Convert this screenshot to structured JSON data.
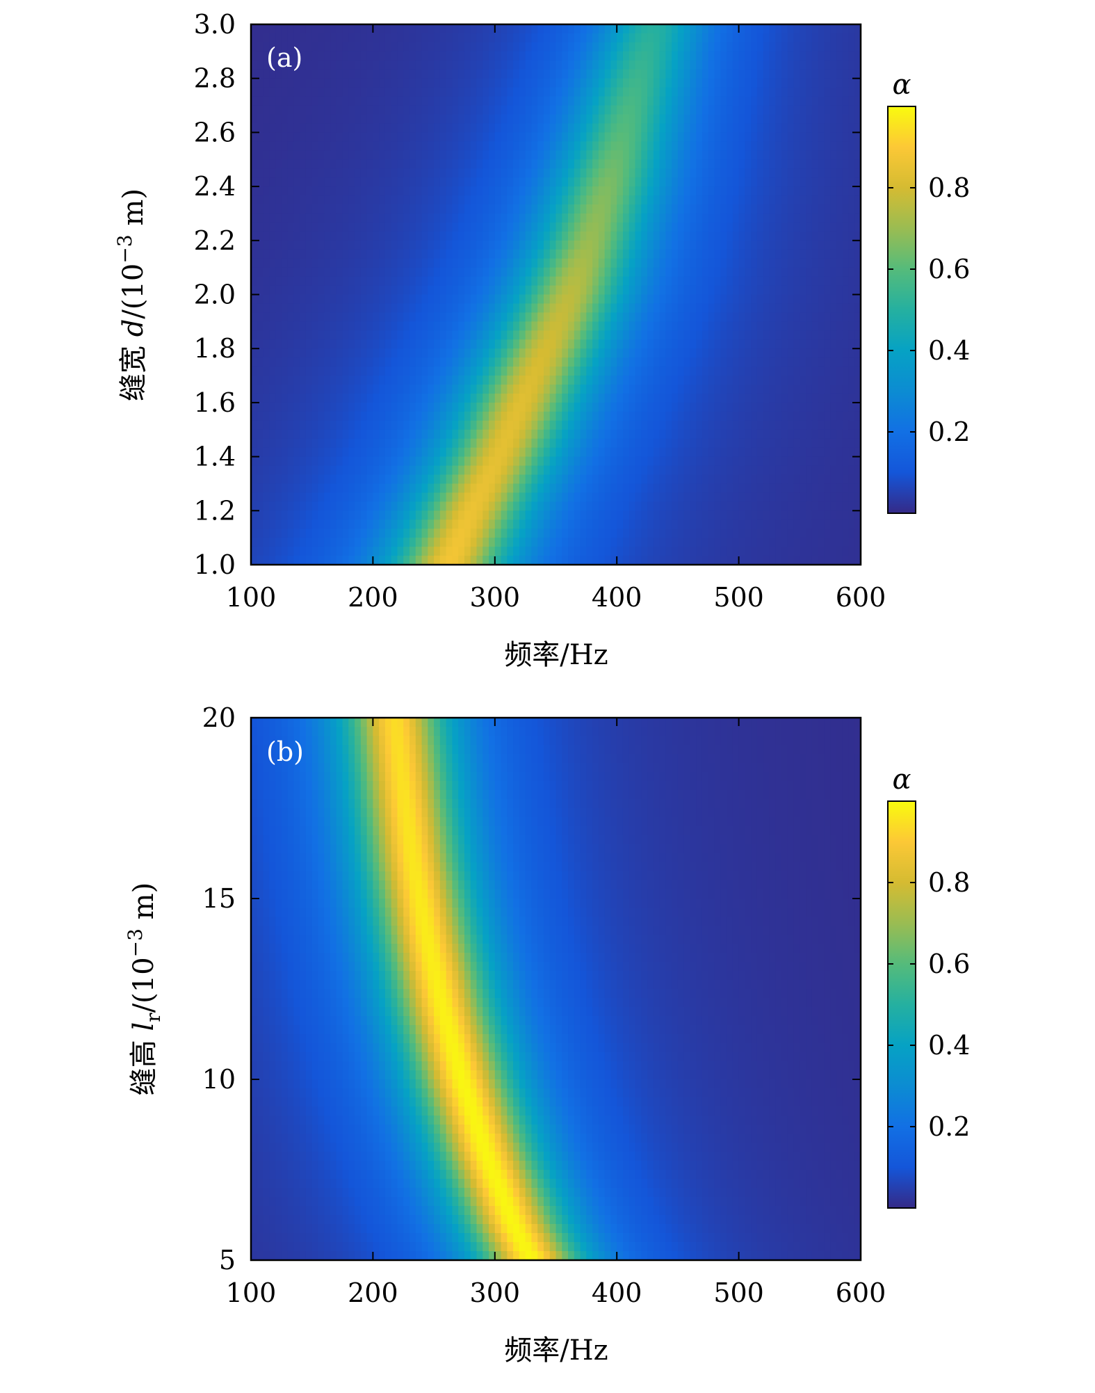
{
  "chart_data": [
    {
      "type": "heatmap",
      "panel_label": "(a)",
      "xlabel": "频率/Hz",
      "ylabel_prefix": "缝宽 ",
      "ylabel_var": "d",
      "ylabel_suffix": "/(10",
      "ylabel_exp": "−3",
      "ylabel_unit": " m)",
      "xlim": [
        100,
        600
      ],
      "ylim": [
        1.0,
        3.0
      ],
      "xticks": [
        100,
        200,
        300,
        400,
        500,
        600
      ],
      "xtick_labels": [
        "100",
        "200",
        "300",
        "400",
        "500",
        "600"
      ],
      "yticks": [
        1.0,
        1.2,
        1.4,
        1.6,
        1.8,
        2.0,
        2.2,
        2.4,
        2.6,
        2.8,
        3.0
      ],
      "ytick_labels": [
        "1.0",
        "1.2",
        "1.4",
        "1.6",
        "1.8",
        "2.0",
        "2.2",
        "2.4",
        "2.6",
        "2.8",
        "3.0"
      ],
      "ridge": {
        "y": [
          1.0,
          1.2,
          1.4,
          1.6,
          1.8,
          2.0,
          2.2,
          2.4,
          2.6,
          2.8,
          3.0
        ],
        "x_peak": [
          262,
          281,
          303,
          322,
          342,
          362,
          378,
          392,
          405,
          417,
          430
        ],
        "alpha_peak": [
          0.88,
          0.86,
          0.84,
          0.83,
          0.8,
          0.76,
          0.7,
          0.66,
          0.6,
          0.55,
          0.5
        ]
      },
      "colorbar": {
        "title": "α",
        "range": [
          0,
          1
        ],
        "ticks": [
          0.2,
          0.4,
          0.6,
          0.8
        ],
        "tick_labels": [
          "0.2",
          "0.4",
          "0.6",
          "0.8"
        ]
      }
    },
    {
      "type": "heatmap",
      "panel_label": "(b)",
      "xlabel": "频率/Hz",
      "ylabel_prefix": "缝高 ",
      "ylabel_var": "l",
      "ylabel_sub": "r",
      "ylabel_suffix": "/(10",
      "ylabel_exp": "−3",
      "ylabel_unit": " m)",
      "xlim": [
        100,
        600
      ],
      "ylim": [
        5,
        20
      ],
      "xticks": [
        100,
        200,
        300,
        400,
        500,
        600
      ],
      "xtick_labels": [
        "100",
        "200",
        "300",
        "400",
        "500",
        "600"
      ],
      "yticks": [
        5,
        10,
        15,
        20
      ],
      "ytick_labels": [
        "5",
        "10",
        "15",
        "20"
      ],
      "ridge": {
        "y": [
          5,
          6,
          8,
          10,
          12,
          14,
          16,
          18,
          20
        ],
        "x_peak": [
          330,
          315,
          292,
          273,
          257,
          244,
          233,
          225,
          218
        ],
        "alpha_peak": [
          0.99,
          0.99,
          0.99,
          0.99,
          0.98,
          0.97,
          0.96,
          0.95,
          0.94
        ]
      },
      "colorbar": {
        "title": "α",
        "range": [
          0,
          1
        ],
        "ticks": [
          0.2,
          0.4,
          0.6,
          0.8
        ],
        "tick_labels": [
          "0.2",
          "0.4",
          "0.6",
          "0.8"
        ]
      }
    }
  ]
}
